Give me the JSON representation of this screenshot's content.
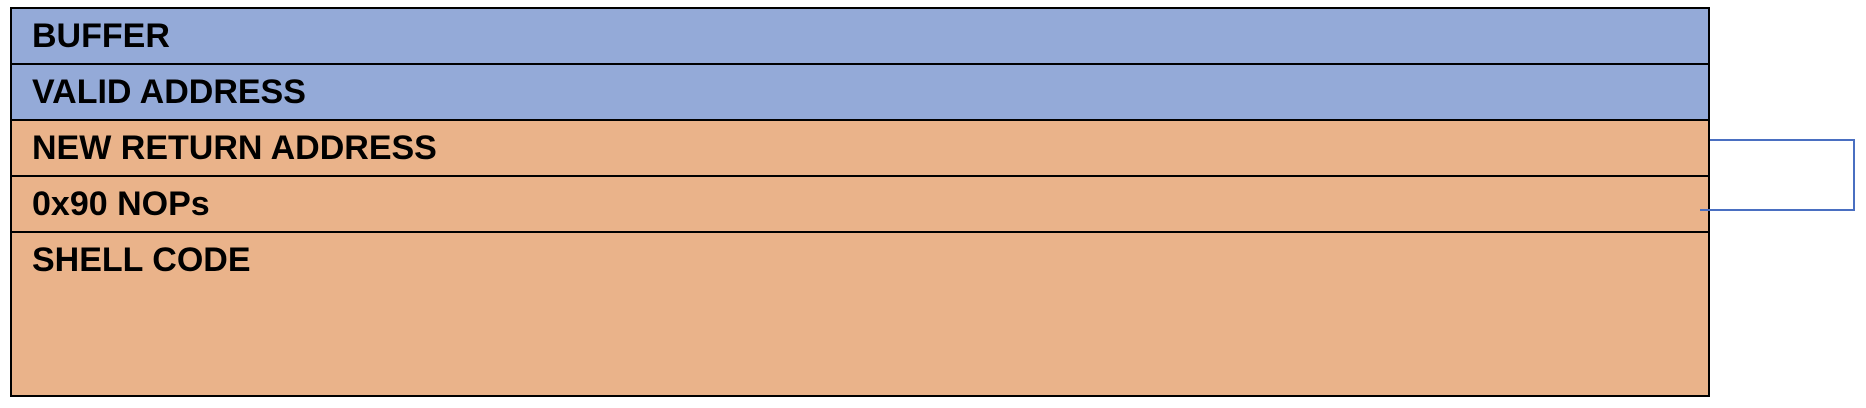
{
  "segments": [
    {
      "label": "BUFFER",
      "color": "#94aad8"
    },
    {
      "label": "VALID ADDRESS",
      "color": "#94aad8"
    },
    {
      "label": "NEW RETURN ADDRESS",
      "color": "#eab38a"
    },
    {
      "label": "0x90 NOPs",
      "color": "#eab38a"
    },
    {
      "label": "SHELL CODE",
      "color": "#eab38a"
    }
  ],
  "connector_color": "#4a6fc1"
}
